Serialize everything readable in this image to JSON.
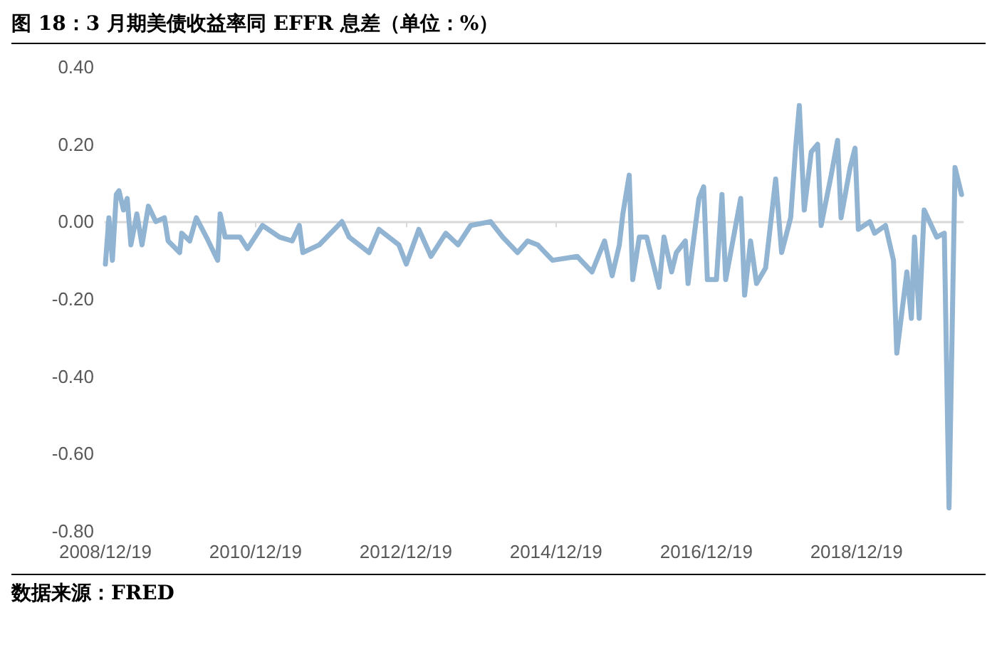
{
  "chart_data": {
    "type": "line",
    "title": "图 18：3 月期美债收益率同 EFFR 息差（单位：%）",
    "annotations": [
      "数据来源：FRED"
    ],
    "xlim": [
      "2008-12-19",
      "2020-05-19"
    ],
    "xticks": [
      {
        "value": "2008-12-19",
        "label": "2008/12/19"
      },
      {
        "value": "2010-12-19",
        "label": "2010/12/19"
      },
      {
        "value": "2012-12-19",
        "label": "2012/12/19"
      },
      {
        "value": "2014-12-19",
        "label": "2014/12/19"
      },
      {
        "value": "2016-12-19",
        "label": "2016/12/19"
      },
      {
        "value": "2018-12-19",
        "label": "2018/12/19"
      }
    ],
    "ylim": [
      -0.8,
      0.4
    ],
    "yticks": [
      {
        "value": 0.4,
        "label": "0.40"
      },
      {
        "value": 0.2,
        "label": "0.20"
      },
      {
        "value": 0,
        "label": "0.00"
      },
      {
        "value": -0.2,
        "label": "-0.20"
      },
      {
        "value": -0.4,
        "label": "-0.40"
      },
      {
        "value": -0.6,
        "label": "-0.60"
      },
      {
        "value": -0.8,
        "label": "-0.80"
      }
    ],
    "marker": "none",
    "line_style": "solid",
    "x": [
      "2008-12-19",
      "2009-01-05",
      "2009-01-22",
      "2009-02-10",
      "2009-02-23",
      "2009-03-17",
      "2009-04-04",
      "2009-04-22",
      "2009-05-21",
      "2009-06-15",
      "2009-07-16",
      "2009-08-21",
      "2009-10-02",
      "2009-10-20",
      "2009-12-15",
      "2009-12-25",
      "2010-02-02",
      "2010-03-06",
      "2010-04-24",
      "2010-06-18",
      "2010-06-30",
      "2010-07-24",
      "2010-10-05",
      "2010-11-10",
      "2011-01-22",
      "2011-04-15",
      "2011-06-15",
      "2011-07-20",
      "2011-08-06",
      "2011-10-25",
      "2012-02-12",
      "2012-03-18",
      "2012-06-23",
      "2012-08-10",
      "2012-11-15",
      "2012-12-21",
      "2013-02-20",
      "2013-04-20",
      "2013-07-01",
      "2013-08-30",
      "2013-10-30",
      "2014-02-04",
      "2014-04-04",
      "2014-06-15",
      "2014-08-03",
      "2014-09-21",
      "2014-12-02",
      "2015-04-01",
      "2015-06-12",
      "2015-08-12",
      "2015-09-18",
      "2015-10-23",
      "2015-11-09",
      "2015-12-10",
      "2015-12-27",
      "2016-01-28",
      "2016-03-04",
      "2016-05-03",
      "2016-05-27",
      "2016-07-03",
      "2016-07-26",
      "2016-09-08",
      "2016-09-21",
      "2016-11-13",
      "2016-12-06",
      "2016-12-24",
      "2017-02-06",
      "2017-03-05",
      "2017-03-23",
      "2017-06-04",
      "2017-06-23",
      "2017-07-22",
      "2017-08-20",
      "2017-10-03",
      "2017-11-21",
      "2017-12-20",
      "2018-02-02",
      "2018-02-26",
      "2018-03-16",
      "2018-04-09",
      "2018-05-13",
      "2018-06-13",
      "2018-06-30",
      "2018-08-18",
      "2018-09-18",
      "2018-10-05",
      "2018-11-18",
      "2018-12-12",
      "2018-12-28",
      "2019-02-22",
      "2019-03-17",
      "2019-05-09",
      "2019-06-17",
      "2019-07-03",
      "2019-08-21",
      "2019-09-12",
      "2019-09-27",
      "2019-10-20",
      "2019-11-13",
      "2020-01-13",
      "2020-02-19",
      "2020-03-13",
      "2020-04-11",
      "2020-05-13"
    ],
    "series": [
      {
        "color": "#92b4d3",
        "values": [
          -0.11,
          0.01,
          -0.1,
          0.07,
          0.08,
          0.03,
          0.06,
          -0.06,
          0.02,
          -0.06,
          0.04,
          0.0,
          0.01,
          -0.05,
          -0.08,
          -0.03,
          -0.05,
          0.01,
          -0.04,
          -0.1,
          0.02,
          -0.04,
          -0.04,
          -0.07,
          -0.01,
          -0.04,
          -0.05,
          -0.01,
          -0.08,
          -0.06,
          0.0,
          -0.04,
          -0.08,
          -0.02,
          -0.06,
          -0.11,
          -0.02,
          -0.09,
          -0.03,
          -0.06,
          -0.01,
          0.0,
          -0.04,
          -0.08,
          -0.05,
          -0.06,
          -0.1,
          -0.09,
          -0.13,
          -0.05,
          -0.14,
          -0.06,
          0.02,
          0.12,
          -0.15,
          -0.04,
          -0.04,
          -0.17,
          -0.04,
          -0.13,
          -0.08,
          -0.05,
          -0.16,
          0.06,
          0.09,
          -0.15,
          -0.15,
          0.07,
          -0.15,
          0.06,
          -0.19,
          -0.05,
          -0.16,
          -0.12,
          0.11,
          -0.08,
          0.01,
          0.19,
          0.3,
          0.03,
          0.18,
          0.2,
          -0.01,
          0.12,
          0.21,
          0.01,
          0.14,
          0.19,
          -0.02,
          0.0,
          -0.03,
          -0.01,
          -0.1,
          -0.34,
          -0.13,
          -0.25,
          -0.04,
          -0.25,
          0.03,
          -0.04,
          -0.03,
          -0.74,
          0.14,
          0.07
        ]
      }
    ]
  }
}
